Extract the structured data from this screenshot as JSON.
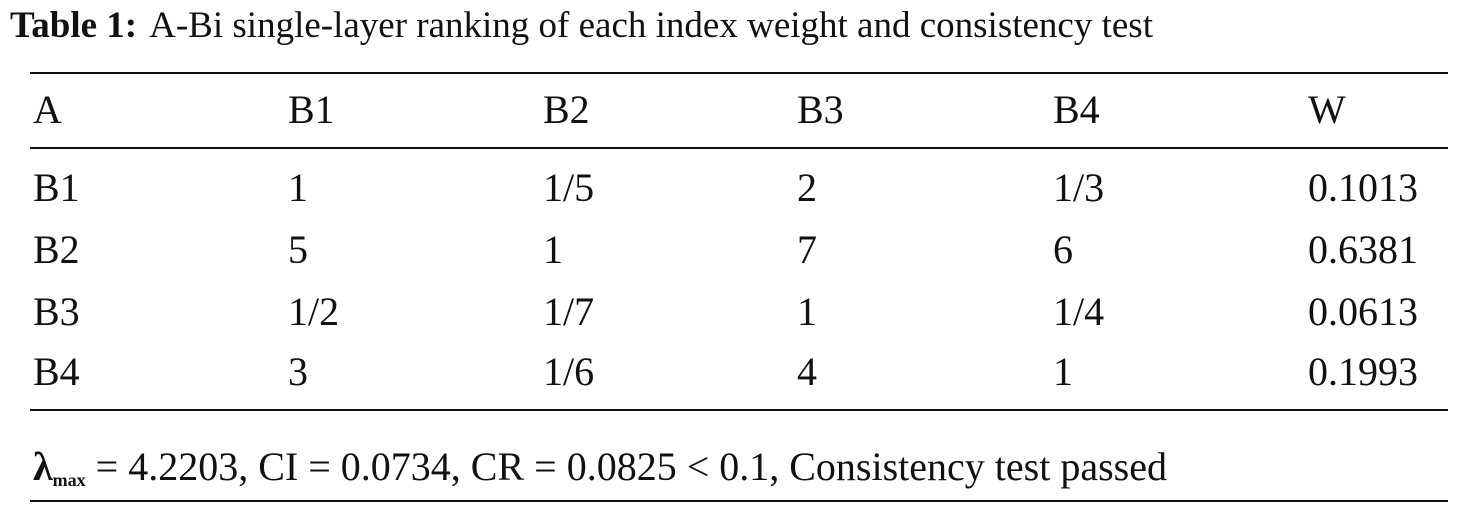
{
  "caption": {
    "label": "Table 1:",
    "text": "A-Bi single-layer ranking of each index weight and consistency test"
  },
  "table": {
    "header": [
      "A",
      "B1",
      "B2",
      "B3",
      "B4",
      "W"
    ],
    "rows": [
      [
        "B1",
        "1",
        "1/5",
        "2",
        "1/3",
        "0.1013"
      ],
      [
        "B2",
        "5",
        "1",
        "7",
        "6",
        "0.6381"
      ],
      [
        "B3",
        "1/2",
        "1/7",
        "1",
        "1/4",
        "0.0613"
      ],
      [
        "B4",
        "3",
        "1/6",
        "4",
        "1",
        "0.1993"
      ]
    ]
  },
  "footer": {
    "symbol": "λ",
    "subscript": "max",
    "text": "= 4.2203, CI = 0.0734, CR = 0.0825 < 0.1, Consistency test passed"
  }
}
